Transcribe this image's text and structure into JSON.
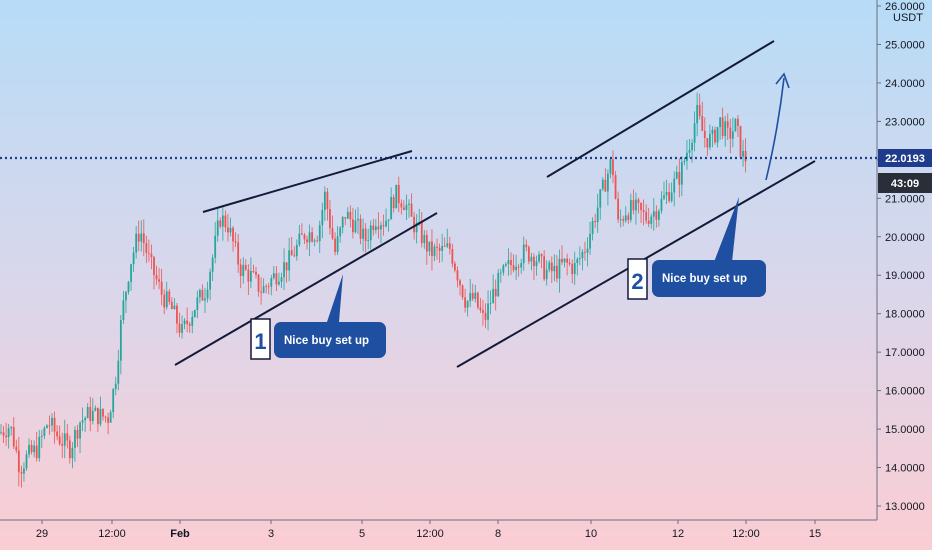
{
  "chart_data": {
    "type": "candlestick",
    "currency": "USDT",
    "ylim": [
      13.0,
      26.0
    ],
    "y_ticks": [
      "13.0000",
      "14.0000",
      "15.0000",
      "16.0000",
      "17.0000",
      "18.0000",
      "19.0000",
      "20.0000",
      "21.0000",
      "22.0000",
      "23.0000",
      "24.0000",
      "25.0000",
      "26.0000"
    ],
    "x_ticks": [
      "29",
      "12:00",
      "Feb",
      "3",
      "5",
      "12:00",
      "8",
      "10",
      "12",
      "12:00",
      "15"
    ],
    "last_price": "22.0193",
    "countdown": "43:09",
    "series": [
      {
        "x": "29",
        "approx_close": 14.2
      },
      {
        "x": "12:00",
        "approx_close": 15.3
      },
      {
        "x": "Feb",
        "approx_close": 17.5
      },
      {
        "x": "3",
        "approx_close": 19.0
      },
      {
        "x": "5",
        "approx_close": 20.3
      },
      {
        "x": "12:00",
        "approx_close": 20.0
      },
      {
        "x": "8",
        "approx_close": 18.0
      },
      {
        "x": "10",
        "approx_close": 20.5
      },
      {
        "x": "12",
        "approx_close": 22.5
      },
      {
        "x": "12:00",
        "approx_close": 22.0
      }
    ],
    "annotations": [
      {
        "number": "1",
        "text": "Nice buy set up"
      },
      {
        "number": "2",
        "text": "Nice buy set up"
      }
    ],
    "colors": {
      "up": "#26a69a",
      "down": "#ef5350",
      "trendline": "#131a3a",
      "callout": "#1f4fa0",
      "price_line": "#1f3c8c",
      "bg_top": "#b7dcf7",
      "bg_bottom": "#fbcdd3"
    }
  }
}
